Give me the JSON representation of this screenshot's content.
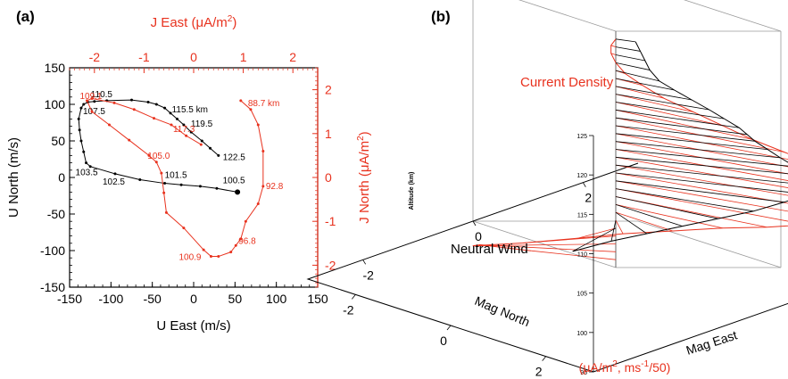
{
  "colors": {
    "black_series": "#000000",
    "red_series": "#e8321e",
    "frame": "#000000",
    "grid3d": "#9a9a9a"
  },
  "chart_data": [
    {
      "panel_label": "(a)",
      "type": "line",
      "xlabel": "U  East  (m/s)",
      "ylabel": "U  North  (m/s)",
      "x2label_main": "J  East  (μA/m",
      "x2label_sup": "2",
      "x2label_end": ")",
      "y2label_main": "J  North  (μA/m",
      "y2label_sup": "2",
      "y2label_end": ")",
      "xlim": [
        -150,
        150
      ],
      "ylim": [
        -150,
        150
      ],
      "x2lim": [
        -2.5,
        2.5
      ],
      "y2lim": [
        -2.5,
        2.5
      ],
      "xticks": [
        "-150",
        "-100",
        "-50",
        "0",
        "50",
        "100",
        "150"
      ],
      "yticks": [
        "-150",
        "-100",
        "-50",
        "0",
        "50",
        "100",
        "150"
      ],
      "x2ticks": [
        "-2",
        "-1",
        "0",
        "1",
        "2"
      ],
      "y2ticks": [
        "-2",
        "-1",
        "0",
        "1",
        "2"
      ],
      "series": [
        {
          "color": "black",
          "axes": "bottom-left",
          "x": [
            53,
            28,
            8,
            -15,
            -35,
            -65,
            -95,
            -125,
            -130,
            -133,
            -136,
            -138,
            -139,
            -136,
            -133,
            -128,
            -120,
            -105,
            -75,
            -55,
            -45,
            -35,
            -28,
            -20,
            -12,
            -3,
            10,
            20,
            30
          ],
          "y": [
            -20,
            -15,
            -12,
            -10,
            -8,
            -3,
            5,
            15,
            20,
            35,
            50,
            65,
            80,
            95,
            100,
            103,
            104,
            105,
            106,
            103,
            100,
            95,
            88,
            80,
            72,
            62,
            50,
            40,
            30
          ],
          "labels": [
            {
              "i": 0,
              "text": "100.5"
            },
            {
              "i": 4,
              "text": "101.5"
            },
            {
              "i": 6,
              "text": "102.5"
            },
            {
              "i": 8,
              "text": "103.5"
            },
            {
              "i": 13,
              "text": "107.5"
            },
            {
              "i": 17,
              "text": "110.5"
            },
            {
              "i": 21,
              "text": "115.5 km"
            },
            {
              "i": 24,
              "text": "119.5"
            },
            {
              "i": 28,
              "text": "122.5"
            }
          ]
        },
        {
          "color": "red",
          "axes": "top-right",
          "x": [
            0.95,
            1.15,
            1.3,
            1.4,
            1.4,
            1.3,
            1.05,
            0.95,
            0.85,
            0.75,
            0.5,
            0.35,
            0.2,
            -0.2,
            -0.55,
            -0.6,
            -0.65,
            -0.75,
            -0.9,
            -1.3,
            -1.7,
            -2.05,
            -2.15,
            -2.05,
            -1.6,
            -1.2,
            -0.8,
            -0.45,
            -0.15,
            0.15
          ],
          "y": [
            1.75,
            1.55,
            1.2,
            0.6,
            -0.2,
            -0.6,
            -1.0,
            -1.4,
            -1.55,
            -1.7,
            -1.8,
            -1.8,
            -1.65,
            -1.15,
            -0.8,
            -0.35,
            0.1,
            0.35,
            0.5,
            0.85,
            1.2,
            1.5,
            1.75,
            1.8,
            1.7,
            1.55,
            1.35,
            1.2,
            0.95,
            0.75
          ],
          "labels": [
            {
              "i": 0,
              "text": "88.7 km"
            },
            {
              "i": 4,
              "text": "92.8"
            },
            {
              "i": 8,
              "text": "96.8"
            },
            {
              "i": 11,
              "text": "100.9"
            },
            {
              "i": 17,
              "text": "105.0"
            },
            {
              "i": 22,
              "text": "109.1"
            },
            {
              "i": 27,
              "text": "117.3"
            }
          ]
        }
      ]
    },
    {
      "panel_label": "(b)",
      "type": "line",
      "zlabel": "Altitude (km)",
      "zlim": [
        95,
        125
      ],
      "zticks": [
        "95",
        "100",
        "105",
        "110",
        "115",
        "120",
        "125"
      ],
      "mag_north_label": "Mag North",
      "mag_east_label": "Mag East",
      "mag_north_ticks": [
        "2",
        "0",
        "-2"
      ],
      "mag_east_ticks": [
        "-2",
        "0",
        "2"
      ],
      "units_pre": "(μA/m",
      "units_sup1": "2",
      "units_mid": ", ms",
      "units_sup2": "-1",
      "units_end": "/50)",
      "series": [
        {
          "name": "Neutral Wind",
          "color": "black",
          "alt": [
            100,
            101,
            102,
            103,
            104,
            105,
            106,
            107,
            108,
            109,
            110,
            111,
            112,
            113,
            114,
            115,
            116,
            117,
            118,
            119,
            120,
            121,
            122,
            123,
            124
          ],
          "north": [
            0.25,
            0.6,
            1.0,
            1.4,
            1.8,
            2.2,
            2.5,
            2.75,
            2.85,
            2.7,
            2.5,
            2.3,
            2.15,
            2.0,
            1.95,
            1.9,
            1.7,
            1.5,
            1.25,
            1.0,
            0.8,
            0.6,
            0.5,
            0.4,
            0.3
          ],
          "east": [
            -1.0,
            -0.6,
            -0.3,
            0.0,
            0.3,
            0.6,
            0.9,
            1.1,
            1.2,
            1.2,
            1.1,
            1.0,
            0.9,
            0.8,
            0.7,
            0.6,
            0.5,
            0.4,
            0.3,
            0.2,
            0.1,
            0.1,
            0.1,
            0.1,
            0.1
          ]
        },
        {
          "name": "Current Density",
          "color": "red",
          "alt": [
            96,
            97,
            98,
            99,
            100,
            101,
            102,
            103,
            104,
            105,
            106,
            107,
            108,
            109,
            110,
            111,
            112,
            113,
            114,
            115,
            116,
            117,
            118,
            119,
            120,
            121,
            122,
            123,
            124
          ],
          "north": [
            -1.2,
            -1.7,
            -1.5,
            -0.8,
            -0.1,
            0.5,
            1.2,
            1.9,
            2.6,
            3.2,
            3.7,
            4.1,
            4.3,
            4.35,
            4.3,
            4.1,
            3.8,
            3.4,
            2.9,
            2.4,
            1.9,
            1.4,
            0.9,
            0.5,
            0.2,
            0.0,
            -0.1,
            -0.1,
            0.0
          ],
          "east": [
            -0.5,
            -1.0,
            -1.3,
            -1.0,
            -0.6,
            -0.3,
            0.0,
            0.3,
            0.5,
            0.7,
            0.9,
            1.0,
            1.05,
            1.05,
            1.0,
            0.9,
            0.8,
            0.7,
            0.55,
            0.4,
            0.3,
            0.2,
            0.1,
            0.05,
            0.0,
            0.0,
            0.0,
            0.0,
            0.0
          ]
        }
      ]
    }
  ]
}
